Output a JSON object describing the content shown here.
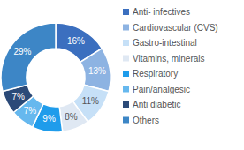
{
  "chart_data": {
    "type": "donut",
    "categories": [
      "Anti- infectives",
      "Cardiovascular (CVS)",
      "Gastro-intestinal",
      "Vitamins, minerals",
      "Respiratory",
      "Pain/analgesic",
      "Anti diabetic",
      "Others"
    ],
    "values": [
      16,
      13,
      11,
      8,
      9,
      7,
      7,
      29
    ],
    "value_labels": [
      "16%",
      "13%",
      "11%",
      "8%",
      "9%",
      "7%",
      "7%",
      "29%"
    ],
    "colors": [
      "#3b6fbf",
      "#8db3e2",
      "#c6e0f7",
      "#dfe8f3",
      "#1f9ceb",
      "#66b8ee",
      "#2b4a78",
      "#3d86c6"
    ],
    "data_labels": true,
    "legend": "right"
  }
}
